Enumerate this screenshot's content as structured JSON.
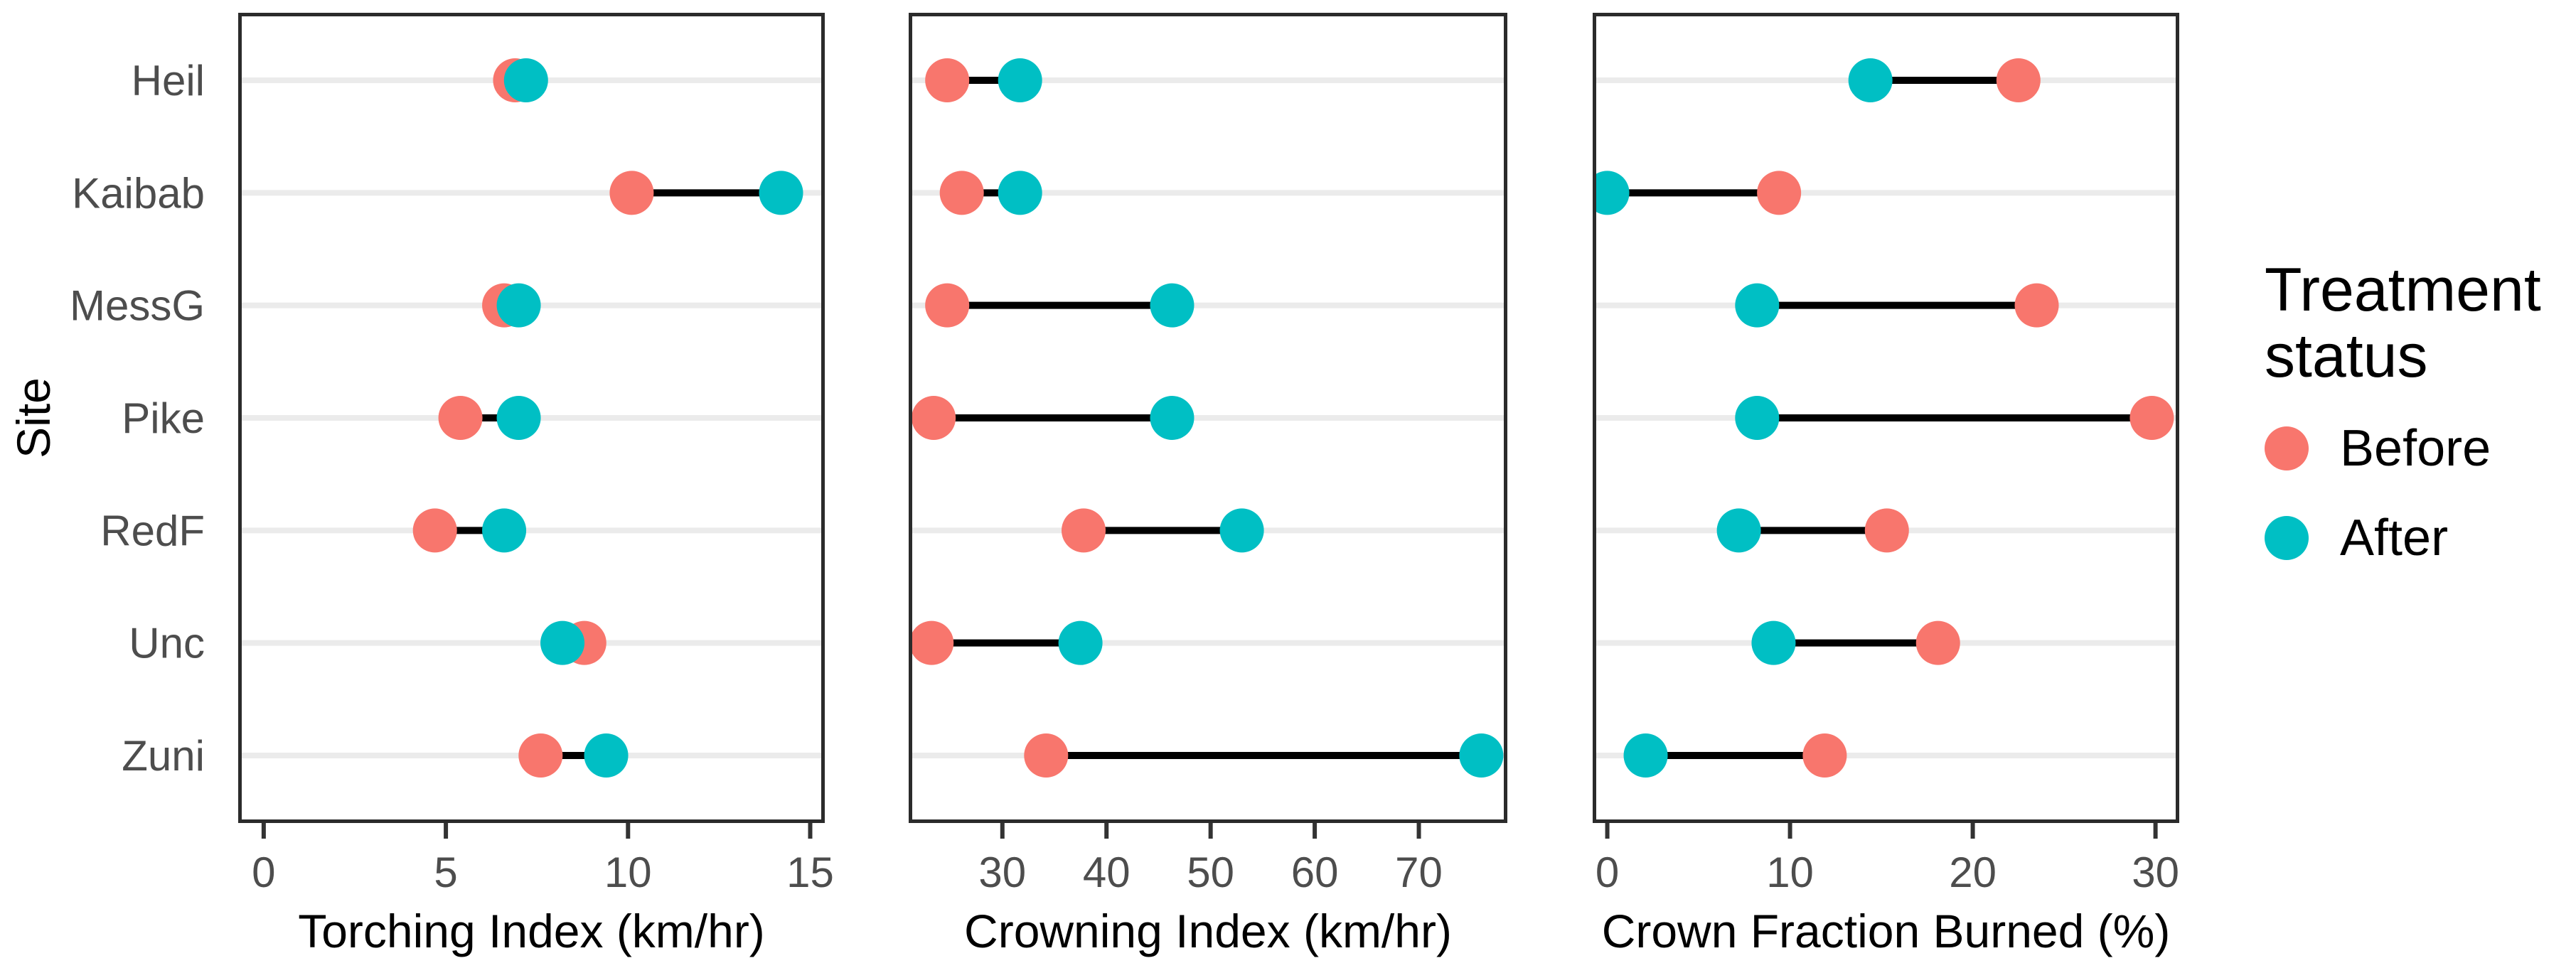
{
  "y_axis": {
    "title": "Site",
    "categories": [
      "Heil",
      "Kaibab",
      "MessG",
      "Pike",
      "RedF",
      "Unc",
      "Zuni"
    ]
  },
  "legend": {
    "title": "Treatment status",
    "items": [
      {
        "label": "Before",
        "color": "#F8766D"
      },
      {
        "label": "After",
        "color": "#00BFC4"
      }
    ]
  },
  "colors": {
    "background": "#FFFFFF",
    "panel_border": "#2B2B2B",
    "grid": "#EBEBEB",
    "axis_text": "#4D4D4D",
    "tick_mark": "#333333",
    "connector": "#000000"
  },
  "chart_data": [
    {
      "type": "dumbbell",
      "title": "",
      "xlabel": "Torching Index (km/hr)",
      "ylabel": "Site",
      "xlim": [
        -0.7,
        15.4
      ],
      "xticks": [
        0,
        5,
        10,
        15
      ],
      "grid": "horizontal-major-only",
      "legend_position": "right",
      "categories": [
        "Heil",
        "Kaibab",
        "MessG",
        "Pike",
        "RedF",
        "Unc",
        "Zuni"
      ],
      "series": [
        {
          "name": "Before",
          "values": [
            6.9,
            10.1,
            6.6,
            5.4,
            4.7,
            8.8,
            7.6
          ]
        },
        {
          "name": "After",
          "values": [
            7.2,
            14.2,
            7.0,
            7.0,
            6.6,
            8.2,
            9.4
          ]
        }
      ]
    },
    {
      "type": "dumbbell",
      "title": "",
      "xlabel": "Crowning Index (km/hr)",
      "ylabel": "Site",
      "xlim": [
        21.0,
        78.5
      ],
      "xticks": [
        30,
        40,
        50,
        60,
        70
      ],
      "grid": "horizontal-major-only",
      "legend_position": "right",
      "categories": [
        "Heil",
        "Kaibab",
        "MessG",
        "Pike",
        "RedF",
        "Unc",
        "Zuni"
      ],
      "series": [
        {
          "name": "Before",
          "values": [
            24.7,
            26.1,
            24.7,
            23.4,
            37.8,
            23.2,
            34.2
          ]
        },
        {
          "name": "After",
          "values": [
            31.7,
            31.7,
            46.3,
            46.3,
            53.0,
            37.5,
            76.0
          ]
        }
      ]
    },
    {
      "type": "dumbbell",
      "title": "",
      "xlabel": "Crown Fraction Burned (%)",
      "ylabel": "Site",
      "xlim": [
        -0.8,
        31.3
      ],
      "xticks": [
        0,
        10,
        20,
        30
      ],
      "grid": "horizontal-major-only",
      "legend_position": "right",
      "categories": [
        "Heil",
        "Kaibab",
        "MessG",
        "Pike",
        "RedF",
        "Unc",
        "Zuni"
      ],
      "series": [
        {
          "name": "Before",
          "values": [
            22.5,
            9.4,
            23.5,
            29.8,
            15.3,
            18.1,
            11.9
          ]
        },
        {
          "name": "After",
          "values": [
            14.4,
            0.0,
            8.2,
            8.2,
            7.2,
            9.1,
            2.1
          ]
        }
      ]
    }
  ]
}
